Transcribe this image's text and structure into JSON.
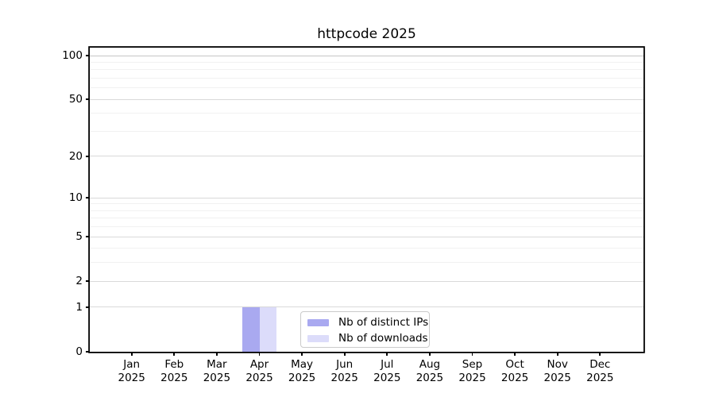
{
  "title": "httpcode 2025",
  "chart_data": {
    "type": "bar",
    "title": "httpcode 2025",
    "categories": [
      "Jan 2025",
      "Feb 2025",
      "Mar 2025",
      "Apr 2025",
      "May 2025",
      "Jun 2025",
      "Jul 2025",
      "Aug 2025",
      "Sep 2025",
      "Oct 2025",
      "Nov 2025",
      "Dec 2025"
    ],
    "x_tick_month": [
      "Jan",
      "Feb",
      "Mar",
      "Apr",
      "May",
      "Jun",
      "Jul",
      "Aug",
      "Sep",
      "Oct",
      "Nov",
      "Dec"
    ],
    "x_tick_year": "2025",
    "series": [
      {
        "name": "Nb of distinct IPs",
        "color": "#a9a9f0",
        "values": [
          0,
          0,
          0,
          1,
          0,
          0,
          0,
          0,
          0,
          0,
          0,
          0
        ]
      },
      {
        "name": "Nb of downloads",
        "color": "#dcdcfa",
        "values": [
          0,
          0,
          0,
          1,
          0,
          0,
          0,
          0,
          0,
          0,
          0,
          0
        ]
      }
    ],
    "yscale": "log1p",
    "ylim": [
      0,
      113
    ],
    "yticks": [
      0,
      1,
      2,
      5,
      10,
      20,
      50,
      100
    ],
    "minor_gridlines": [
      3,
      4,
      6,
      7,
      8,
      9,
      30,
      40,
      60,
      70,
      80,
      90
    ],
    "grid": true,
    "legend_position": "lower center"
  },
  "colors": {
    "background": "#ffffff",
    "axis": "#000000",
    "grid_major": "#d9d9d9",
    "grid_minor": "#f1f1f1",
    "grid_top": "#c6c6c6",
    "legend_border": "#cbcbcb"
  }
}
